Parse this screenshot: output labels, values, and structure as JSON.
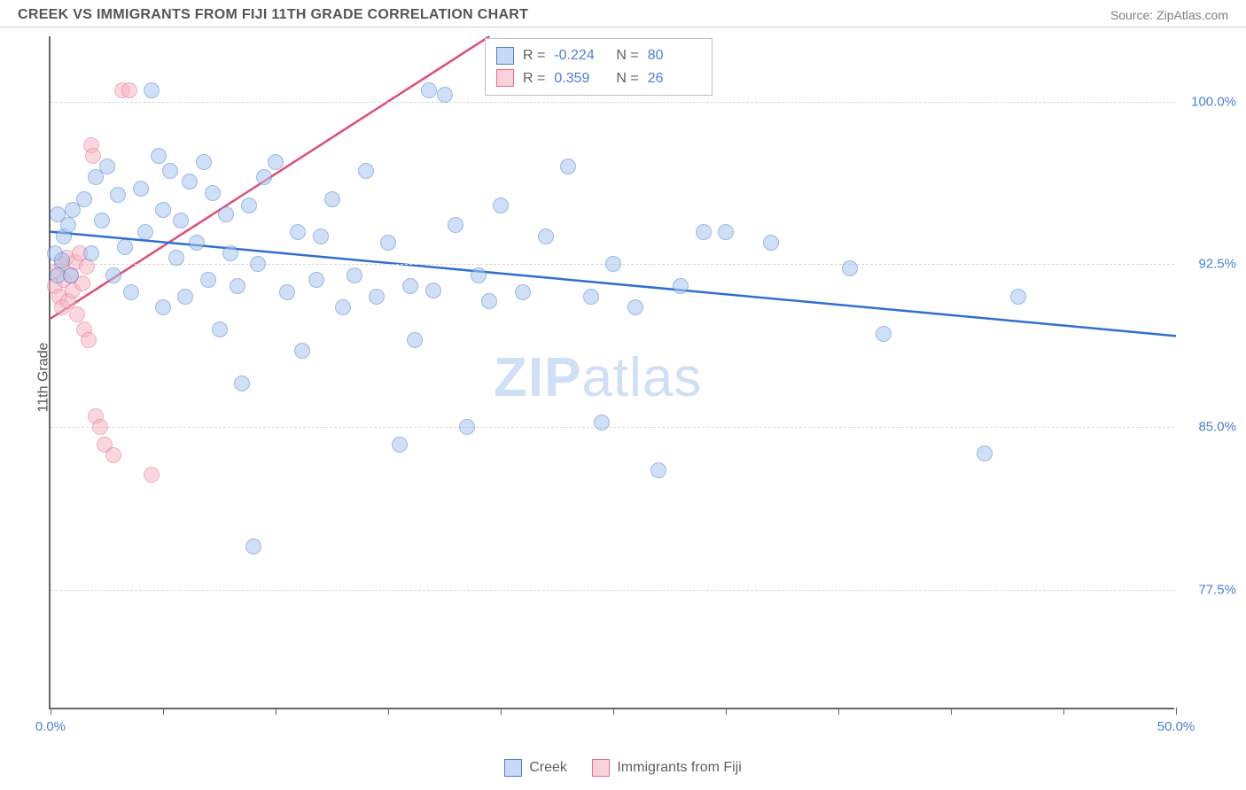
{
  "header": {
    "title": "CREEK VS IMMIGRANTS FROM FIJI 11TH GRADE CORRELATION CHART",
    "source": "Source: ZipAtlas.com"
  },
  "ylabel": "11th Grade",
  "watermark": {
    "zip": "ZIP",
    "atlas": "atlas"
  },
  "chart": {
    "type": "scatter",
    "xlim": [
      0,
      50
    ],
    "ylim": [
      72,
      103
    ],
    "yticks": [
      77.5,
      85.0,
      92.5,
      100.0
    ],
    "ytick_labels": [
      "77.5%",
      "85.0%",
      "92.5%",
      "100.0%"
    ],
    "xticks": [
      0,
      5,
      10,
      15,
      20,
      25,
      30,
      35,
      40,
      45,
      50
    ],
    "xtick_labels_shown": {
      "0": "0.0%",
      "50": "50.0%"
    },
    "background_color": "#ffffff",
    "grid_color": "#d8d8d8",
    "axis_color": "#666666",
    "label_color": "#4a7fd6",
    "marker_size": 18,
    "series": {
      "creek": {
        "label": "Creek",
        "color_fill": "#a9c6ed",
        "color_stroke": "#4a7fd6",
        "R": "-0.224",
        "N": "80",
        "trend": {
          "x1": 0,
          "y1": 94.0,
          "x2": 50,
          "y2": 89.2,
          "color": "#2f6fd0"
        },
        "points": [
          [
            0.2,
            93.0
          ],
          [
            0.3,
            92.0
          ],
          [
            0.3,
            94.8
          ],
          [
            0.5,
            92.7
          ],
          [
            0.6,
            93.8
          ],
          [
            0.8,
            94.3
          ],
          [
            0.9,
            92.0
          ],
          [
            1.0,
            95.0
          ],
          [
            1.5,
            95.5
          ],
          [
            1.8,
            93.0
          ],
          [
            2.0,
            96.5
          ],
          [
            2.3,
            94.5
          ],
          [
            2.5,
            97.0
          ],
          [
            2.8,
            92.0
          ],
          [
            3.0,
            95.7
          ],
          [
            3.3,
            93.3
          ],
          [
            3.6,
            91.2
          ],
          [
            4.0,
            96.0
          ],
          [
            4.2,
            94.0
          ],
          [
            4.5,
            100.5
          ],
          [
            4.8,
            97.5
          ],
          [
            5.0,
            95.0
          ],
          [
            5.0,
            90.5
          ],
          [
            5.3,
            96.8
          ],
          [
            5.6,
            92.8
          ],
          [
            5.8,
            94.5
          ],
          [
            6.0,
            91.0
          ],
          [
            6.2,
            96.3
          ],
          [
            6.5,
            93.5
          ],
          [
            6.8,
            97.2
          ],
          [
            7.0,
            91.8
          ],
          [
            7.2,
            95.8
          ],
          [
            7.5,
            89.5
          ],
          [
            7.8,
            94.8
          ],
          [
            8.0,
            93.0
          ],
          [
            8.3,
            91.5
          ],
          [
            8.5,
            87.0
          ],
          [
            8.8,
            95.2
          ],
          [
            9.0,
            79.5
          ],
          [
            9.2,
            92.5
          ],
          [
            9.5,
            96.5
          ],
          [
            10.0,
            97.2
          ],
          [
            10.5,
            91.2
          ],
          [
            11.0,
            94.0
          ],
          [
            11.2,
            88.5
          ],
          [
            11.8,
            91.8
          ],
          [
            12.0,
            93.8
          ],
          [
            12.5,
            95.5
          ],
          [
            13.0,
            90.5
          ],
          [
            13.5,
            92.0
          ],
          [
            14.0,
            96.8
          ],
          [
            14.5,
            91.0
          ],
          [
            15.0,
            93.5
          ],
          [
            15.5,
            84.2
          ],
          [
            16.0,
            91.5
          ],
          [
            16.2,
            89.0
          ],
          [
            16.8,
            100.5
          ],
          [
            17.0,
            91.3
          ],
          [
            17.5,
            100.3
          ],
          [
            18.0,
            94.3
          ],
          [
            18.5,
            85.0
          ],
          [
            19.0,
            92.0
          ],
          [
            19.5,
            90.8
          ],
          [
            20.0,
            95.2
          ],
          [
            21.0,
            91.2
          ],
          [
            22.0,
            93.8
          ],
          [
            23.0,
            97.0
          ],
          [
            24.0,
            91.0
          ],
          [
            24.5,
            85.2
          ],
          [
            25.0,
            92.5
          ],
          [
            26.0,
            90.5
          ],
          [
            27.0,
            83.0
          ],
          [
            28.0,
            91.5
          ],
          [
            29.0,
            94.0
          ],
          [
            30.0,
            94.0
          ],
          [
            32.0,
            93.5
          ],
          [
            35.5,
            92.3
          ],
          [
            37.0,
            89.3
          ],
          [
            41.5,
            83.8
          ],
          [
            43.0,
            91.0
          ]
        ]
      },
      "fiji": {
        "label": "Immigrants from Fiji",
        "color_fill": "#f6b8c6",
        "color_stroke": "#e66f8c",
        "R": "0.359",
        "N": "26",
        "trend": {
          "x1": 0,
          "y1": 90.0,
          "x2": 19.5,
          "y2": 103.0,
          "color": "#e04d73"
        },
        "points": [
          [
            0.2,
            91.5
          ],
          [
            0.3,
            92.2
          ],
          [
            0.4,
            91.0
          ],
          [
            0.5,
            92.5
          ],
          [
            0.5,
            90.5
          ],
          [
            0.6,
            91.8
          ],
          [
            0.7,
            92.8
          ],
          [
            0.8,
            90.8
          ],
          [
            0.9,
            92.0
          ],
          [
            1.0,
            91.3
          ],
          [
            1.1,
            92.6
          ],
          [
            1.2,
            90.2
          ],
          [
            1.3,
            93.0
          ],
          [
            1.4,
            91.6
          ],
          [
            1.5,
            89.5
          ],
          [
            1.6,
            92.4
          ],
          [
            1.7,
            89.0
          ],
          [
            1.8,
            98.0
          ],
          [
            1.9,
            97.5
          ],
          [
            2.0,
            85.5
          ],
          [
            2.2,
            85.0
          ],
          [
            2.4,
            84.2
          ],
          [
            2.8,
            83.7
          ],
          [
            3.2,
            100.5
          ],
          [
            3.5,
            100.5
          ],
          [
            4.5,
            82.8
          ]
        ]
      }
    }
  },
  "stat_box": {
    "rows": [
      {
        "swatch": "blue",
        "R_label": "R =",
        "R": "-0.224",
        "N_label": "N =",
        "N": "80"
      },
      {
        "swatch": "pink",
        "R_label": "R =",
        "R": "0.359",
        "N_label": "N =",
        "N": "26"
      }
    ]
  },
  "legend_bottom": {
    "creek": "Creek",
    "fiji": "Immigrants from Fiji"
  }
}
